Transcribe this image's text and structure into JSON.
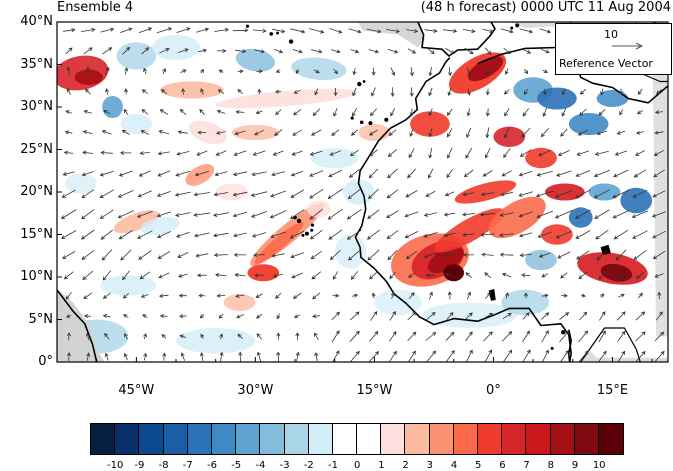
{
  "header": {
    "left_title": "Ensemble 4",
    "right_title": "(48 h forecast) 0000 UTC 11 Aug 2004"
  },
  "axes": {
    "lon_range": [
      -55,
      22
    ],
    "lat_range": [
      0,
      40
    ],
    "y_ticks": [
      {
        "value": 40,
        "label": "40°N"
      },
      {
        "value": 35,
        "label": "35°N"
      },
      {
        "value": 30,
        "label": "30°N"
      },
      {
        "value": 25,
        "label": "25°N"
      },
      {
        "value": 20,
        "label": "20°N"
      },
      {
        "value": 15,
        "label": "15°N"
      },
      {
        "value": 10,
        "label": "10°N"
      },
      {
        "value": 5,
        "label": "5°N"
      },
      {
        "value": 0,
        "label": "0°"
      }
    ],
    "x_ticks": [
      {
        "value": -45,
        "label": "45°W"
      },
      {
        "value": -30,
        "label": "30°W"
      },
      {
        "value": -15,
        "label": "15°W"
      },
      {
        "value": 0,
        "label": "0°"
      },
      {
        "value": 15,
        "label": "15°E"
      }
    ]
  },
  "reference_vector": {
    "magnitude": "10",
    "label": "Reference Vector"
  },
  "colorbar": {
    "colors": [
      "#08203f",
      "#08306b",
      "#0b4a8e",
      "#1a5ea7",
      "#2b72b8",
      "#3f89c5",
      "#5fa3d2",
      "#84bcdc",
      "#aad4e8",
      "#d2ecf8",
      "#ffffff",
      "#ffffff",
      "#fde0dd",
      "#fcbba1",
      "#fc9272",
      "#fb6a4a",
      "#ef3b2c",
      "#d7262b",
      "#cb181d",
      "#a50f15",
      "#7f0a10",
      "#5c0008"
    ],
    "labels": [
      "-10",
      "-9",
      "-8",
      "-7",
      "-6",
      "-5",
      "-4",
      "-3",
      "-2",
      "-1",
      "0",
      "1",
      "2",
      "3",
      "4",
      "5",
      "6",
      "7",
      "8",
      "9",
      "10"
    ]
  },
  "map": {
    "ocean_color": "#ffffff",
    "land_mask_color": "#d3d3d3",
    "arrow_color": "#333333"
  }
}
